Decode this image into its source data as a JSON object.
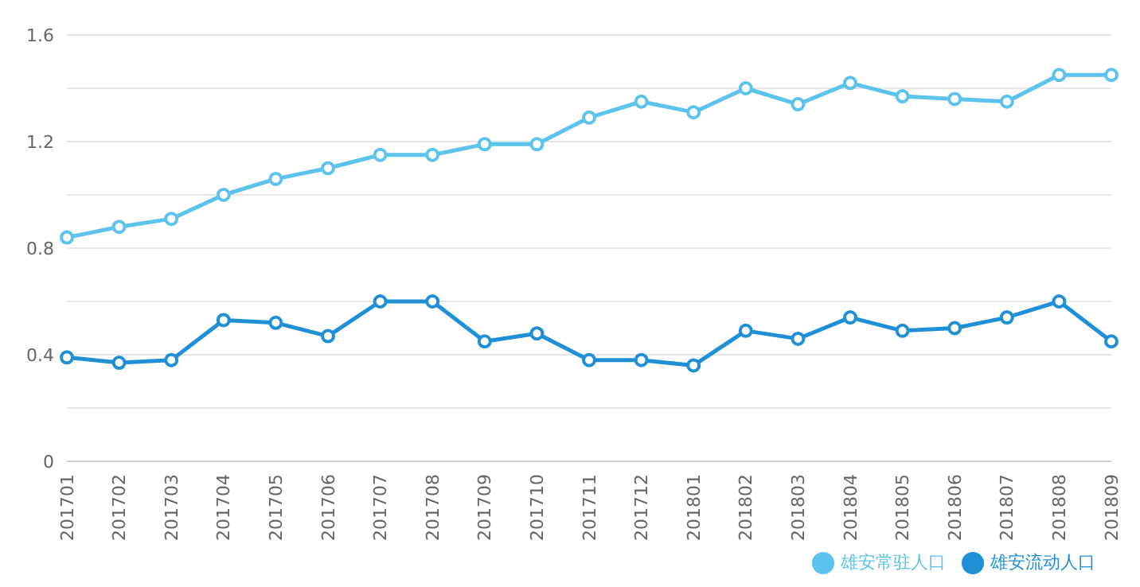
{
  "chart_data": {
    "type": "line",
    "categories": [
      "201701",
      "201702",
      "201703",
      "201704",
      "201705",
      "201706",
      "201707",
      "201708",
      "201709",
      "201710",
      "201711",
      "201712",
      "201801",
      "201802",
      "201803",
      "201804",
      "201805",
      "201806",
      "201807",
      "201808",
      "201809"
    ],
    "series": [
      {
        "name": "雄安常驻人口",
        "color": "#5cc3ec",
        "values": [
          0.84,
          0.88,
          0.91,
          1.0,
          1.06,
          1.1,
          1.15,
          1.15,
          1.19,
          1.19,
          1.29,
          1.35,
          1.31,
          1.4,
          1.34,
          1.42,
          1.37,
          1.36,
          1.35,
          1.45,
          1.45
        ]
      },
      {
        "name": "雄安流动人口",
        "color": "#1f8fd6",
        "values": [
          0.39,
          0.37,
          0.38,
          0.53,
          0.52,
          0.47,
          0.6,
          0.6,
          0.45,
          0.48,
          0.38,
          0.38,
          0.36,
          0.49,
          0.46,
          0.54,
          0.49,
          0.5,
          0.54,
          0.6,
          0.45
        ]
      }
    ],
    "ylim": [
      0,
      1.6
    ],
    "yticks": [
      0,
      {
        "value": 0.2,
        "label": null
      },
      0.4,
      {
        "value": 0.6,
        "label": null
      },
      0.8,
      {
        "value": 1.0,
        "label": null
      },
      1.2,
      {
        "value": 1.4,
        "label": null
      },
      1.6
    ],
    "grid": "y",
    "legend": "bottom right",
    "marker": "circle",
    "line_style": "solid"
  }
}
